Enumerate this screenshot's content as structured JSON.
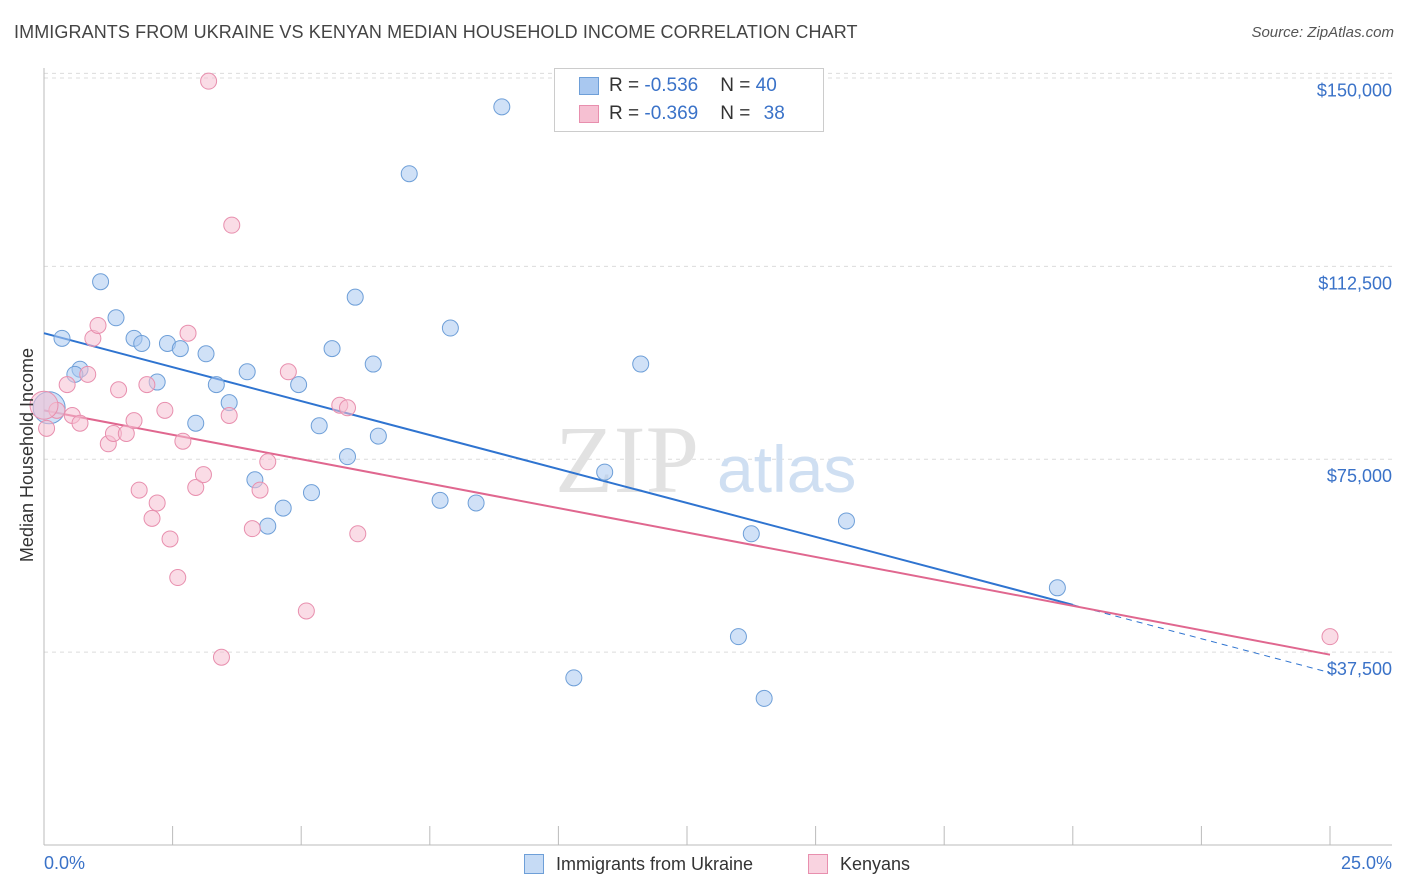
{
  "title": "IMMIGRANTS FROM UKRAINE VS KENYAN MEDIAN HOUSEHOLD INCOME CORRELATION CHART",
  "source": "Source: ZipAtlas.com",
  "watermark": {
    "zip": "ZIP",
    "atlas": "atlas"
  },
  "legend": {
    "rows": [
      {
        "r_label": "R = ",
        "r_value": "-0.536",
        "n_label": "N = ",
        "n_value": "40"
      },
      {
        "r_label": "R = ",
        "r_value": "-0.369",
        "n_label": "N = ",
        "n_value": "38"
      }
    ]
  },
  "chart_data": {
    "type": "scatter",
    "xlabel": "",
    "ylabel": "Median Household Income",
    "xlim": [
      0,
      25
    ],
    "ylim": [
      0,
      153000
    ],
    "x_tick_labels": [
      "0.0%",
      "25.0%"
    ],
    "y_ticks": [
      37500,
      75000,
      112500,
      150000
    ],
    "y_tick_labels": [
      "$37,500",
      "$75,000",
      "$112,500",
      "$150,000"
    ],
    "grid": "horizontal dashed",
    "legend_position": "bottom",
    "series": [
      {
        "name": "Immigrants from Ukraine",
        "color": "#a9c8f0",
        "stroke": "#6e9fd8",
        "line_color": "#2f74d0",
        "trend": {
          "x0": 0,
          "y0": 99500,
          "x1": 25,
          "y1": 33500,
          "solid_until": 20
        },
        "points": [
          [
            0.1,
            85000
          ],
          [
            0.35,
            98500
          ],
          [
            1.1,
            109500
          ],
          [
            0.7,
            92500
          ],
          [
            0.6,
            91500
          ],
          [
            1.4,
            102500
          ],
          [
            1.75,
            98500
          ],
          [
            1.9,
            97500
          ],
          [
            2.2,
            90000
          ],
          [
            2.4,
            97500
          ],
          [
            2.65,
            96500
          ],
          [
            2.95,
            82000
          ],
          [
            3.15,
            95500
          ],
          [
            3.35,
            89500
          ],
          [
            3.6,
            86000
          ],
          [
            3.95,
            92000
          ],
          [
            4.1,
            71000
          ],
          [
            4.35,
            62000
          ],
          [
            4.65,
            65500
          ],
          [
            4.95,
            89500
          ],
          [
            5.2,
            68500
          ],
          [
            5.35,
            81500
          ],
          [
            5.6,
            96500
          ],
          [
            5.9,
            75500
          ],
          [
            6.05,
            106500
          ],
          [
            6.4,
            93500
          ],
          [
            6.5,
            79500
          ],
          [
            7.1,
            130500
          ],
          [
            7.9,
            100500
          ],
          [
            7.7,
            67000
          ],
          [
            8.4,
            66500
          ],
          [
            8.9,
            143500
          ],
          [
            10.3,
            32500
          ],
          [
            10.9,
            72500
          ],
          [
            11.6,
            93500
          ],
          [
            13.5,
            40500
          ],
          [
            13.75,
            60500
          ],
          [
            14.0,
            28500
          ],
          [
            15.6,
            63000
          ],
          [
            19.7,
            50000
          ]
        ]
      },
      {
        "name": "Kenyans",
        "color": "#f6c0d2",
        "stroke": "#e88fae",
        "line_color": "#e0678f",
        "trend": {
          "x0": 0,
          "y0": 84500,
          "x1": 25,
          "y1": 37000
        },
        "points": [
          [
            0.05,
            81000
          ],
          [
            0.25,
            84500
          ],
          [
            0.45,
            89500
          ],
          [
            0.55,
            83500
          ],
          [
            0.7,
            82000
          ],
          [
            0.85,
            91500
          ],
          [
            0.95,
            98500
          ],
          [
            1.05,
            101000
          ],
          [
            1.25,
            78000
          ],
          [
            1.35,
            80000
          ],
          [
            1.45,
            88500
          ],
          [
            1.6,
            80000
          ],
          [
            1.75,
            82500
          ],
          [
            1.85,
            69000
          ],
          [
            2.0,
            89500
          ],
          [
            2.1,
            63500
          ],
          [
            2.2,
            66500
          ],
          [
            2.35,
            84500
          ],
          [
            2.45,
            59500
          ],
          [
            2.6,
            52000
          ],
          [
            2.7,
            78500
          ],
          [
            2.8,
            99500
          ],
          [
            2.95,
            69500
          ],
          [
            3.1,
            72000
          ],
          [
            3.2,
            148500
          ],
          [
            3.45,
            36500
          ],
          [
            3.6,
            83500
          ],
          [
            3.65,
            120500
          ],
          [
            4.05,
            61500
          ],
          [
            4.2,
            69000
          ],
          [
            4.35,
            74500
          ],
          [
            4.75,
            92000
          ],
          [
            5.1,
            45500
          ],
          [
            5.75,
            85500
          ],
          [
            5.9,
            85000
          ],
          [
            6.1,
            60500
          ],
          [
            25.0,
            40500
          ],
          [
            0.0,
            85500
          ]
        ]
      }
    ]
  }
}
